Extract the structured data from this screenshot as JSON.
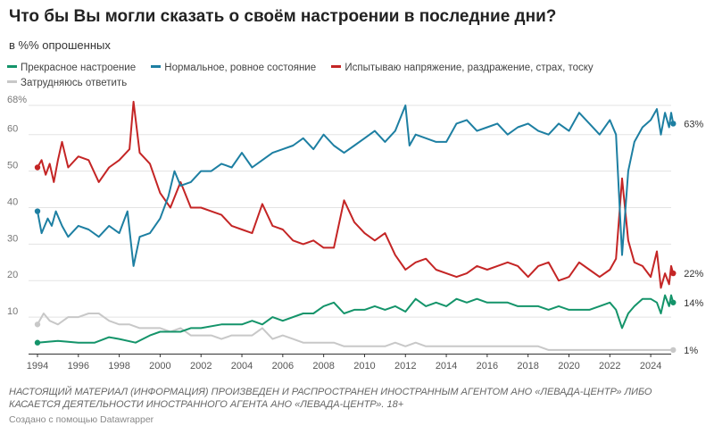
{
  "title": "Что бы Вы могли сказать о своём настроении в последние дни?",
  "subtitle": "в %% опрошенных",
  "footer_text": "НАСТОЯЩИЙ МАТЕРИАЛ (ИНФОРМАЦИЯ) ПРОИЗВЕДЕН И РАСПРОСТРАНЕН ИНОСТРАННЫМ АГЕНТОМ АНО «ЛЕВАДА-ЦЕНТР» ЛИБО КАСАЕТСЯ ДЕЯТЕЛЬНОСТИ ИНОСТРАННОГО АГЕНТА АНО «ЛЕВАДА-ЦЕНТР». 18+",
  "credit": "Создано с помощью Datawrapper",
  "chart_data": {
    "type": "line",
    "title": "Что бы Вы могли сказать о своём настроении в последние дни?",
    "ylabel": "в %% опрошенных",
    "xlim": [
      1994,
      2025
    ],
    "ylim": [
      0,
      68
    ],
    "y_ticks": [
      10,
      20,
      30,
      40,
      50,
      60,
      68
    ],
    "y_tick_labels": [
      "10",
      "20",
      "30",
      "40",
      "50",
      "60",
      "68%"
    ],
    "x_ticks": [
      1994,
      1996,
      1998,
      2000,
      2002,
      2004,
      2006,
      2008,
      2010,
      2012,
      2014,
      2016,
      2018,
      2020,
      2022,
      2024
    ],
    "grid": true,
    "legend_position": "top",
    "series": [
      {
        "name": "Прекрасное настроение",
        "color": "#14946a",
        "end_label": "14%",
        "points": [
          [
            1994.0,
            3
          ],
          [
            1995.0,
            3.5
          ],
          [
            1996.0,
            3
          ],
          [
            1996.8,
            3
          ],
          [
            1997.5,
            4.5
          ],
          [
            1998.0,
            4
          ],
          [
            1998.8,
            3
          ],
          [
            1999.5,
            5
          ],
          [
            2000.0,
            6
          ],
          [
            2000.5,
            6
          ],
          [
            2001.0,
            6
          ],
          [
            2001.5,
            7
          ],
          [
            2002.0,
            7
          ],
          [
            2003.0,
            8
          ],
          [
            2004.0,
            8
          ],
          [
            2004.5,
            9
          ],
          [
            2005.0,
            8
          ],
          [
            2005.5,
            10
          ],
          [
            2006.0,
            9
          ],
          [
            2007.0,
            11
          ],
          [
            2007.5,
            11
          ],
          [
            2008.0,
            13
          ],
          [
            2008.5,
            14
          ],
          [
            2009.0,
            11
          ],
          [
            2009.5,
            12
          ],
          [
            2010.0,
            12
          ],
          [
            2010.5,
            13
          ],
          [
            2011.0,
            12
          ],
          [
            2011.5,
            13
          ],
          [
            2012.0,
            11.5
          ],
          [
            2012.5,
            15
          ],
          [
            2013.0,
            13
          ],
          [
            2013.5,
            14
          ],
          [
            2014.0,
            13
          ],
          [
            2014.5,
            15
          ],
          [
            2015.0,
            14
          ],
          [
            2015.5,
            15
          ],
          [
            2016.0,
            14
          ],
          [
            2016.5,
            14
          ],
          [
            2017.0,
            14
          ],
          [
            2017.5,
            13
          ],
          [
            2018.0,
            13
          ],
          [
            2018.5,
            13
          ],
          [
            2019.0,
            12
          ],
          [
            2019.5,
            13
          ],
          [
            2020.0,
            12
          ],
          [
            2020.5,
            12
          ],
          [
            2021.0,
            12
          ],
          [
            2021.5,
            13
          ],
          [
            2022.0,
            14
          ],
          [
            2022.3,
            12
          ],
          [
            2022.6,
            7
          ],
          [
            2022.9,
            11
          ],
          [
            2023.2,
            13
          ],
          [
            2023.6,
            15
          ],
          [
            2024.0,
            15
          ],
          [
            2024.3,
            14
          ],
          [
            2024.5,
            11
          ],
          [
            2024.7,
            16
          ],
          [
            2024.9,
            13
          ],
          [
            2025.0,
            16
          ],
          [
            2025.1,
            14
          ]
        ]
      },
      {
        "name": "Нормальное, ровное состояние",
        "color": "#1d7fa2",
        "end_label": "63%",
        "points": [
          [
            1994.0,
            39
          ],
          [
            1994.2,
            33
          ],
          [
            1994.5,
            37
          ],
          [
            1994.7,
            35
          ],
          [
            1994.9,
            39
          ],
          [
            1995.2,
            35
          ],
          [
            1995.5,
            32
          ],
          [
            1996.0,
            35
          ],
          [
            1996.5,
            34
          ],
          [
            1997.0,
            32
          ],
          [
            1997.5,
            35
          ],
          [
            1998.0,
            33
          ],
          [
            1998.4,
            39
          ],
          [
            1998.7,
            24
          ],
          [
            1999.0,
            32
          ],
          [
            1999.5,
            33
          ],
          [
            2000.0,
            37
          ],
          [
            2000.4,
            43
          ],
          [
            2000.7,
            50
          ],
          [
            2001.0,
            46
          ],
          [
            2001.5,
            47
          ],
          [
            2002.0,
            50
          ],
          [
            2002.5,
            50
          ],
          [
            2003.0,
            52
          ],
          [
            2003.5,
            51
          ],
          [
            2004.0,
            55
          ],
          [
            2004.5,
            51
          ],
          [
            2005.0,
            53
          ],
          [
            2005.5,
            55
          ],
          [
            2006.0,
            56
          ],
          [
            2006.5,
            57
          ],
          [
            2007.0,
            59
          ],
          [
            2007.5,
            56
          ],
          [
            2008.0,
            60
          ],
          [
            2008.5,
            57
          ],
          [
            2009.0,
            55
          ],
          [
            2009.5,
            57
          ],
          [
            2010.0,
            59
          ],
          [
            2010.5,
            61
          ],
          [
            2011.0,
            58
          ],
          [
            2011.5,
            61
          ],
          [
            2012.0,
            68
          ],
          [
            2012.2,
            57
          ],
          [
            2012.5,
            60
          ],
          [
            2013.0,
            59
          ],
          [
            2013.5,
            58
          ],
          [
            2014.0,
            58
          ],
          [
            2014.5,
            63
          ],
          [
            2015.0,
            64
          ],
          [
            2015.5,
            61
          ],
          [
            2016.0,
            62
          ],
          [
            2016.5,
            63
          ],
          [
            2017.0,
            60
          ],
          [
            2017.5,
            62
          ],
          [
            2018.0,
            63
          ],
          [
            2018.5,
            61
          ],
          [
            2019.0,
            60
          ],
          [
            2019.5,
            63
          ],
          [
            2020.0,
            61
          ],
          [
            2020.5,
            66
          ],
          [
            2021.0,
            63
          ],
          [
            2021.5,
            60
          ],
          [
            2022.0,
            64
          ],
          [
            2022.3,
            60
          ],
          [
            2022.6,
            27
          ],
          [
            2022.9,
            50
          ],
          [
            2023.2,
            58
          ],
          [
            2023.6,
            62
          ],
          [
            2024.0,
            64
          ],
          [
            2024.3,
            67
          ],
          [
            2024.5,
            60
          ],
          [
            2024.7,
            66
          ],
          [
            2024.9,
            62
          ],
          [
            2025.0,
            66
          ],
          [
            2025.1,
            63
          ]
        ]
      },
      {
        "name": "Испытываю напряжение, раздражение, страх, тоску",
        "color": "#c42525",
        "end_label": "22%",
        "points": [
          [
            1994.0,
            51
          ],
          [
            1994.2,
            53
          ],
          [
            1994.4,
            49
          ],
          [
            1994.6,
            52
          ],
          [
            1994.8,
            47
          ],
          [
            1995.0,
            53
          ],
          [
            1995.2,
            58
          ],
          [
            1995.5,
            51
          ],
          [
            1996.0,
            54
          ],
          [
            1996.5,
            53
          ],
          [
            1997.0,
            47
          ],
          [
            1997.5,
            51
          ],
          [
            1998.0,
            53
          ],
          [
            1998.5,
            56
          ],
          [
            1998.7,
            69
          ],
          [
            1999.0,
            55
          ],
          [
            1999.5,
            52
          ],
          [
            2000.0,
            44
          ],
          [
            2000.5,
            40
          ],
          [
            2001.0,
            47
          ],
          [
            2001.5,
            40
          ],
          [
            2002.0,
            40
          ],
          [
            2002.5,
            39
          ],
          [
            2003.0,
            38
          ],
          [
            2003.5,
            35
          ],
          [
            2004.0,
            34
          ],
          [
            2004.5,
            33
          ],
          [
            2005.0,
            41
          ],
          [
            2005.5,
            35
          ],
          [
            2006.0,
            34
          ],
          [
            2006.5,
            31
          ],
          [
            2007.0,
            30
          ],
          [
            2007.5,
            31
          ],
          [
            2008.0,
            29
          ],
          [
            2008.5,
            29
          ],
          [
            2009.0,
            42
          ],
          [
            2009.5,
            36
          ],
          [
            2010.0,
            33
          ],
          [
            2010.5,
            31
          ],
          [
            2011.0,
            33
          ],
          [
            2011.5,
            27
          ],
          [
            2012.0,
            23
          ],
          [
            2012.5,
            25
          ],
          [
            2013.0,
            26
          ],
          [
            2013.5,
            23
          ],
          [
            2014.0,
            22
          ],
          [
            2014.5,
            21
          ],
          [
            2015.0,
            22
          ],
          [
            2015.5,
            24
          ],
          [
            2016.0,
            23
          ],
          [
            2016.5,
            24
          ],
          [
            2017.0,
            25
          ],
          [
            2017.5,
            24
          ],
          [
            2018.0,
            21
          ],
          [
            2018.5,
            24
          ],
          [
            2019.0,
            25
          ],
          [
            2019.5,
            20
          ],
          [
            2020.0,
            21
          ],
          [
            2020.5,
            25
          ],
          [
            2021.0,
            23
          ],
          [
            2021.5,
            21
          ],
          [
            2022.0,
            23
          ],
          [
            2022.3,
            26
          ],
          [
            2022.6,
            48
          ],
          [
            2022.9,
            31
          ],
          [
            2023.2,
            25
          ],
          [
            2023.6,
            24
          ],
          [
            2024.0,
            21
          ],
          [
            2024.3,
            28
          ],
          [
            2024.5,
            18
          ],
          [
            2024.7,
            22
          ],
          [
            2024.9,
            19
          ],
          [
            2025.0,
            24
          ],
          [
            2025.1,
            22
          ]
        ]
      },
      {
        "name": "Затрудняюсь ответить",
        "color": "#c8c8c8",
        "end_label": "1%",
        "points": [
          [
            1994.0,
            8
          ],
          [
            1994.3,
            11
          ],
          [
            1994.6,
            9
          ],
          [
            1995.0,
            8
          ],
          [
            1995.5,
            10
          ],
          [
            1996.0,
            10
          ],
          [
            1996.5,
            11
          ],
          [
            1997.0,
            11
          ],
          [
            1997.5,
            9
          ],
          [
            1998.0,
            8
          ],
          [
            1998.5,
            8
          ],
          [
            1999.0,
            7
          ],
          [
            1999.5,
            7
          ],
          [
            2000.0,
            7
          ],
          [
            2000.5,
            6
          ],
          [
            2001.0,
            7
          ],
          [
            2001.5,
            5
          ],
          [
            2002.0,
            5
          ],
          [
            2002.5,
            5
          ],
          [
            2003.0,
            4
          ],
          [
            2003.5,
            5
          ],
          [
            2004.0,
            5
          ],
          [
            2004.5,
            5
          ],
          [
            2005.0,
            7
          ],
          [
            2005.5,
            4
          ],
          [
            2006.0,
            5
          ],
          [
            2006.5,
            4
          ],
          [
            2007.0,
            3
          ],
          [
            2007.5,
            3
          ],
          [
            2008.0,
            3
          ],
          [
            2008.5,
            3
          ],
          [
            2009.0,
            2
          ],
          [
            2009.5,
            2
          ],
          [
            2010.0,
            2
          ],
          [
            2010.5,
            2
          ],
          [
            2011.0,
            2
          ],
          [
            2011.5,
            3
          ],
          [
            2012.0,
            2
          ],
          [
            2012.5,
            3
          ],
          [
            2013.0,
            2
          ],
          [
            2013.5,
            2
          ],
          [
            2014.0,
            2
          ],
          [
            2014.5,
            2
          ],
          [
            2015.0,
            2
          ],
          [
            2015.5,
            2
          ],
          [
            2016.0,
            2
          ],
          [
            2016.5,
            2
          ],
          [
            2017.0,
            2
          ],
          [
            2017.5,
            2
          ],
          [
            2018.0,
            2
          ],
          [
            2018.5,
            2
          ],
          [
            2019.0,
            1
          ],
          [
            2019.5,
            1
          ],
          [
            2020.0,
            1
          ],
          [
            2020.5,
            1
          ],
          [
            2021.0,
            1
          ],
          [
            2021.5,
            1
          ],
          [
            2022.0,
            1
          ],
          [
            2022.5,
            1
          ],
          [
            2023.0,
            1
          ],
          [
            2023.5,
            1
          ],
          [
            2024.0,
            1
          ],
          [
            2024.5,
            1
          ],
          [
            2025.0,
            1
          ],
          [
            2025.1,
            1
          ]
        ]
      }
    ]
  }
}
